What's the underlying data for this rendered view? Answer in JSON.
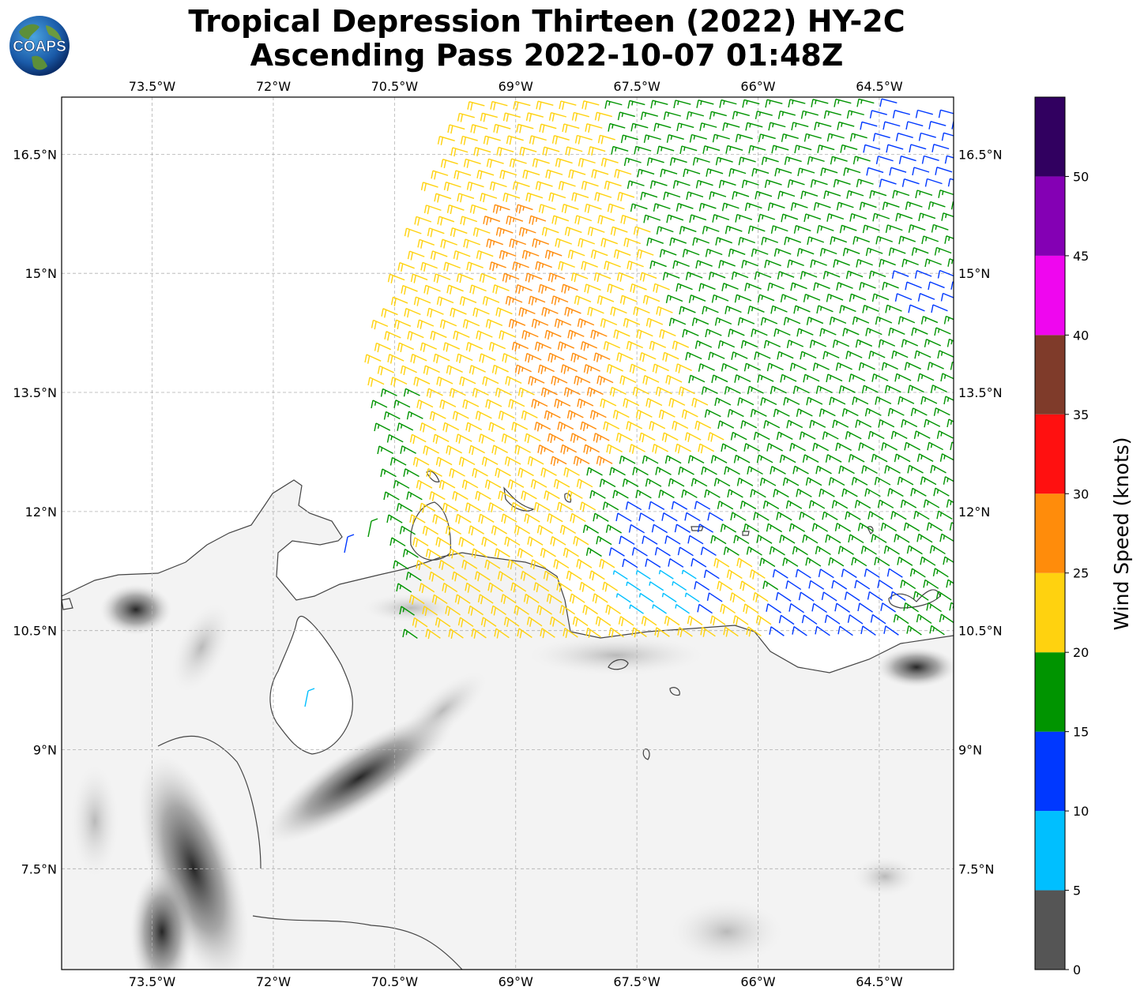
{
  "title": {
    "line1": "Tropical Depression Thirteen (2022) HY-2C",
    "line2": "Ascending Pass 2022-10-07 01:48Z"
  },
  "logo": {
    "text": "COAPS"
  },
  "map": {
    "lon_ticks": [
      "73.5°W",
      "72°W",
      "70.5°W",
      "69°W",
      "67.5°W",
      "66°W",
      "64.5°W"
    ],
    "lon_values": [
      -73.5,
      -72,
      -70.5,
      -69,
      -67.5,
      -66,
      -64.5
    ],
    "lat_ticks": [
      "16.5°N",
      "15°N",
      "13.5°N",
      "12°N",
      "10.5°N",
      "9°N",
      "7.5°N"
    ],
    "lat_values": [
      16.5,
      15,
      13.5,
      12,
      10.5,
      9,
      7.5
    ],
    "extent": {
      "lon_min": -74.62,
      "lon_max": -63.58,
      "lat_min": 6.23,
      "lat_max": 17.22
    },
    "gridlines": true,
    "basemap": "terrain shading (greyscale) with coastlines"
  },
  "colorbar": {
    "label": "Wind Speed (knots)",
    "ticks": [
      "0",
      "5",
      "10",
      "15",
      "20",
      "25",
      "30",
      "35",
      "40",
      "45",
      "50"
    ],
    "bins": [
      {
        "min": 0,
        "max": 5,
        "color": "#555555"
      },
      {
        "min": 5,
        "max": 10,
        "color": "#00bfff"
      },
      {
        "min": 10,
        "max": 15,
        "color": "#0038ff"
      },
      {
        "min": 15,
        "max": 20,
        "color": "#009400"
      },
      {
        "min": 20,
        "max": 25,
        "color": "#ffd20f"
      },
      {
        "min": 25,
        "max": 30,
        "color": "#ff8c0b"
      },
      {
        "min": 30,
        "max": 35,
        "color": "#ff1010"
      },
      {
        "min": 35,
        "max": 40,
        "color": "#7f3b2a"
      },
      {
        "min": 40,
        "max": 45,
        "color": "#ef06ef"
      },
      {
        "min": 45,
        "max": 50,
        "color": "#8400b4"
      },
      {
        "min": 50,
        "max": 55,
        "color": "#310060"
      }
    ]
  },
  "colors": {
    "coastline": "#444444",
    "grid": "#b0b0b0"
  }
}
